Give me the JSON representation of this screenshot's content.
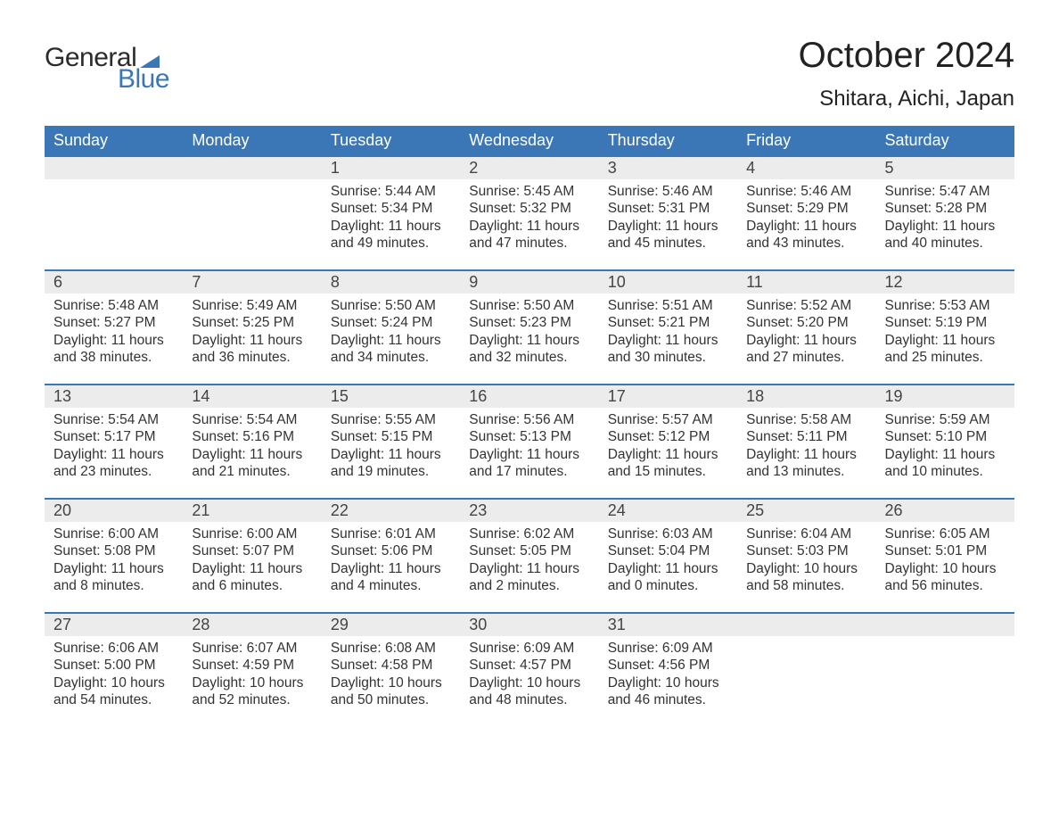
{
  "logo": {
    "text_dark": "General",
    "text_blue": "Blue",
    "flag_color": "#3b77b7"
  },
  "title": "October 2024",
  "location": "Shitara, Aichi, Japan",
  "colors": {
    "header_bg": "#3b77b7",
    "header_text": "#ffffff",
    "daynum_bg": "#ececec",
    "row_border": "#3b77b7",
    "body_text": "#333333",
    "title_text": "#222222",
    "page_bg": "#ffffff"
  },
  "font": {
    "family": "Arial",
    "title_size_pt": 30,
    "location_size_pt": 18,
    "header_size_pt": 13,
    "daynum_size_pt": 13,
    "body_size_pt": 11.5
  },
  "headers": [
    "Sunday",
    "Monday",
    "Tuesday",
    "Wednesday",
    "Thursday",
    "Friday",
    "Saturday"
  ],
  "weeks": [
    [
      {
        "day": "",
        "sunrise": "",
        "sunset": "",
        "daylight": ""
      },
      {
        "day": "",
        "sunrise": "",
        "sunset": "",
        "daylight": ""
      },
      {
        "day": "1",
        "sunrise": "5:44 AM",
        "sunset": "5:34 PM",
        "daylight": "11 hours and 49 minutes."
      },
      {
        "day": "2",
        "sunrise": "5:45 AM",
        "sunset": "5:32 PM",
        "daylight": "11 hours and 47 minutes."
      },
      {
        "day": "3",
        "sunrise": "5:46 AM",
        "sunset": "5:31 PM",
        "daylight": "11 hours and 45 minutes."
      },
      {
        "day": "4",
        "sunrise": "5:46 AM",
        "sunset": "5:29 PM",
        "daylight": "11 hours and 43 minutes."
      },
      {
        "day": "5",
        "sunrise": "5:47 AM",
        "sunset": "5:28 PM",
        "daylight": "11 hours and 40 minutes."
      }
    ],
    [
      {
        "day": "6",
        "sunrise": "5:48 AM",
        "sunset": "5:27 PM",
        "daylight": "11 hours and 38 minutes."
      },
      {
        "day": "7",
        "sunrise": "5:49 AM",
        "sunset": "5:25 PM",
        "daylight": "11 hours and 36 minutes."
      },
      {
        "day": "8",
        "sunrise": "5:50 AM",
        "sunset": "5:24 PM",
        "daylight": "11 hours and 34 minutes."
      },
      {
        "day": "9",
        "sunrise": "5:50 AM",
        "sunset": "5:23 PM",
        "daylight": "11 hours and 32 minutes."
      },
      {
        "day": "10",
        "sunrise": "5:51 AM",
        "sunset": "5:21 PM",
        "daylight": "11 hours and 30 minutes."
      },
      {
        "day": "11",
        "sunrise": "5:52 AM",
        "sunset": "5:20 PM",
        "daylight": "11 hours and 27 minutes."
      },
      {
        "day": "12",
        "sunrise": "5:53 AM",
        "sunset": "5:19 PM",
        "daylight": "11 hours and 25 minutes."
      }
    ],
    [
      {
        "day": "13",
        "sunrise": "5:54 AM",
        "sunset": "5:17 PM",
        "daylight": "11 hours and 23 minutes."
      },
      {
        "day": "14",
        "sunrise": "5:54 AM",
        "sunset": "5:16 PM",
        "daylight": "11 hours and 21 minutes."
      },
      {
        "day": "15",
        "sunrise": "5:55 AM",
        "sunset": "5:15 PM",
        "daylight": "11 hours and 19 minutes."
      },
      {
        "day": "16",
        "sunrise": "5:56 AM",
        "sunset": "5:13 PM",
        "daylight": "11 hours and 17 minutes."
      },
      {
        "day": "17",
        "sunrise": "5:57 AM",
        "sunset": "5:12 PM",
        "daylight": "11 hours and 15 minutes."
      },
      {
        "day": "18",
        "sunrise": "5:58 AM",
        "sunset": "5:11 PM",
        "daylight": "11 hours and 13 minutes."
      },
      {
        "day": "19",
        "sunrise": "5:59 AM",
        "sunset": "5:10 PM",
        "daylight": "11 hours and 10 minutes."
      }
    ],
    [
      {
        "day": "20",
        "sunrise": "6:00 AM",
        "sunset": "5:08 PM",
        "daylight": "11 hours and 8 minutes."
      },
      {
        "day": "21",
        "sunrise": "6:00 AM",
        "sunset": "5:07 PM",
        "daylight": "11 hours and 6 minutes."
      },
      {
        "day": "22",
        "sunrise": "6:01 AM",
        "sunset": "5:06 PM",
        "daylight": "11 hours and 4 minutes."
      },
      {
        "day": "23",
        "sunrise": "6:02 AM",
        "sunset": "5:05 PM",
        "daylight": "11 hours and 2 minutes."
      },
      {
        "day": "24",
        "sunrise": "6:03 AM",
        "sunset": "5:04 PM",
        "daylight": "11 hours and 0 minutes."
      },
      {
        "day": "25",
        "sunrise": "6:04 AM",
        "sunset": "5:03 PM",
        "daylight": "10 hours and 58 minutes."
      },
      {
        "day": "26",
        "sunrise": "6:05 AM",
        "sunset": "5:01 PM",
        "daylight": "10 hours and 56 minutes."
      }
    ],
    [
      {
        "day": "27",
        "sunrise": "6:06 AM",
        "sunset": "5:00 PM",
        "daylight": "10 hours and 54 minutes."
      },
      {
        "day": "28",
        "sunrise": "6:07 AM",
        "sunset": "4:59 PM",
        "daylight": "10 hours and 52 minutes."
      },
      {
        "day": "29",
        "sunrise": "6:08 AM",
        "sunset": "4:58 PM",
        "daylight": "10 hours and 50 minutes."
      },
      {
        "day": "30",
        "sunrise": "6:09 AM",
        "sunset": "4:57 PM",
        "daylight": "10 hours and 48 minutes."
      },
      {
        "day": "31",
        "sunrise": "6:09 AM",
        "sunset": "4:56 PM",
        "daylight": "10 hours and 46 minutes."
      },
      {
        "day": "",
        "sunrise": "",
        "sunset": "",
        "daylight": ""
      },
      {
        "day": "",
        "sunrise": "",
        "sunset": "",
        "daylight": ""
      }
    ]
  ],
  "labels": {
    "sunrise": "Sunrise: ",
    "sunset": "Sunset: ",
    "daylight": "Daylight: "
  }
}
